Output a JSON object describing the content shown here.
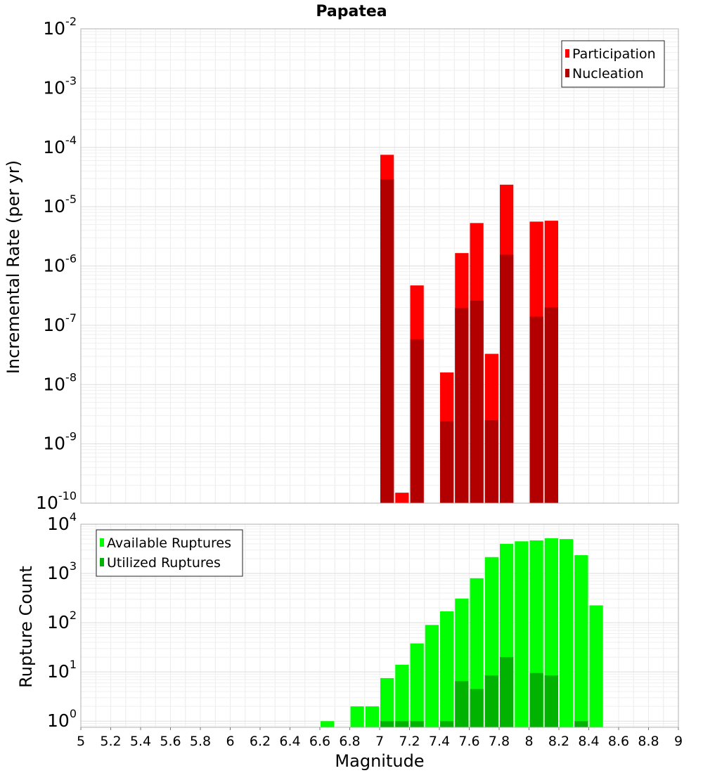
{
  "chart_data": [
    {
      "id": "rates",
      "type": "bar",
      "title": "Papatea",
      "xlabel": "",
      "ylabel": "Incremental Rate (per yr)",
      "yscale": "log",
      "ylim": [
        1e-10,
        0.01
      ],
      "xlim": [
        5,
        9
      ],
      "bar_width": 0.1,
      "grid": true,
      "legend_position": "top-right",
      "y_ticks": [
        {
          "base": "10",
          "exp": "-10"
        },
        {
          "base": "10",
          "exp": "-9"
        },
        {
          "base": "10",
          "exp": "-8"
        },
        {
          "base": "10",
          "exp": "-7"
        },
        {
          "base": "10",
          "exp": "-6"
        },
        {
          "base": "10",
          "exp": "-5"
        },
        {
          "base": "10",
          "exp": "-4"
        },
        {
          "base": "10",
          "exp": "-3"
        },
        {
          "base": "10",
          "exp": "-2"
        }
      ],
      "series": [
        {
          "name": "Participation",
          "color": "#ff0000",
          "points": [
            [
              7.05,
              7.5e-05
            ],
            [
              7.15,
              1.5e-10
            ],
            [
              7.25,
              4.7e-07
            ],
            [
              7.45,
              1.6e-08
            ],
            [
              7.55,
              1.65e-06
            ],
            [
              7.65,
              5.3e-06
            ],
            [
              7.75,
              3.3e-08
            ],
            [
              7.85,
              2.35e-05
            ],
            [
              8.05,
              5.6e-06
            ],
            [
              8.15,
              5.8e-06
            ]
          ]
        },
        {
          "name": "Nucleation",
          "color": "#b20000",
          "points": [
            [
              7.05,
              2.9e-05
            ],
            [
              7.25,
              5.8e-08
            ],
            [
              7.45,
              2.4e-09
            ],
            [
              7.55,
              1.95e-07
            ],
            [
              7.65,
              2.6e-07
            ],
            [
              7.75,
              2.5e-09
            ],
            [
              7.85,
              1.55e-06
            ],
            [
              8.05,
              1.4e-07
            ],
            [
              8.15,
              2e-07
            ]
          ]
        }
      ]
    },
    {
      "id": "counts",
      "type": "bar",
      "title": "",
      "xlabel": "Magnitude",
      "ylabel": "Rupture Count",
      "yscale": "log",
      "ylim": [
        0.75,
        10000
      ],
      "xlim": [
        5,
        9
      ],
      "bar_width": 0.1,
      "grid": true,
      "legend_position": "top-left",
      "x_ticks": [
        "5",
        "5.2",
        "5.4",
        "5.6",
        "5.8",
        "6",
        "6.2",
        "6.4",
        "6.6",
        "6.8",
        "7",
        "7.2",
        "7.4",
        "7.6",
        "7.8",
        "8",
        "8.2",
        "8.4",
        "8.6",
        "8.8",
        "9"
      ],
      "y_ticks": [
        {
          "base": "10",
          "exp": "0"
        },
        {
          "base": "10",
          "exp": "1"
        },
        {
          "base": "10",
          "exp": "2"
        },
        {
          "base": "10",
          "exp": "3"
        },
        {
          "base": "10",
          "exp": "4"
        }
      ],
      "series": [
        {
          "name": "Available Ruptures",
          "color": "#00ff00",
          "points": [
            [
              6.65,
              1
            ],
            [
              6.85,
              2
            ],
            [
              6.95,
              2
            ],
            [
              7.05,
              7.5
            ],
            [
              7.15,
              14
            ],
            [
              7.25,
              38
            ],
            [
              7.35,
              90
            ],
            [
              7.45,
              170
            ],
            [
              7.55,
              310
            ],
            [
              7.65,
              800
            ],
            [
              7.75,
              2150
            ],
            [
              7.85,
              4000
            ],
            [
              7.95,
              4500
            ],
            [
              8.05,
              4700
            ],
            [
              8.15,
              5200
            ],
            [
              8.25,
              5000
            ],
            [
              8.35,
              2350
            ],
            [
              8.45,
              225
            ]
          ]
        },
        {
          "name": "Utilized Ruptures",
          "color": "#00b300",
          "points": [
            [
              7.05,
              1
            ],
            [
              7.15,
              1
            ],
            [
              7.25,
              1
            ],
            [
              7.45,
              1
            ],
            [
              7.55,
              6.5
            ],
            [
              7.65,
              4.5
            ],
            [
              7.75,
              8.5
            ],
            [
              7.85,
              20
            ],
            [
              8.05,
              9.5
            ],
            [
              8.15,
              8.5
            ],
            [
              8.35,
              1
            ]
          ]
        }
      ]
    }
  ]
}
